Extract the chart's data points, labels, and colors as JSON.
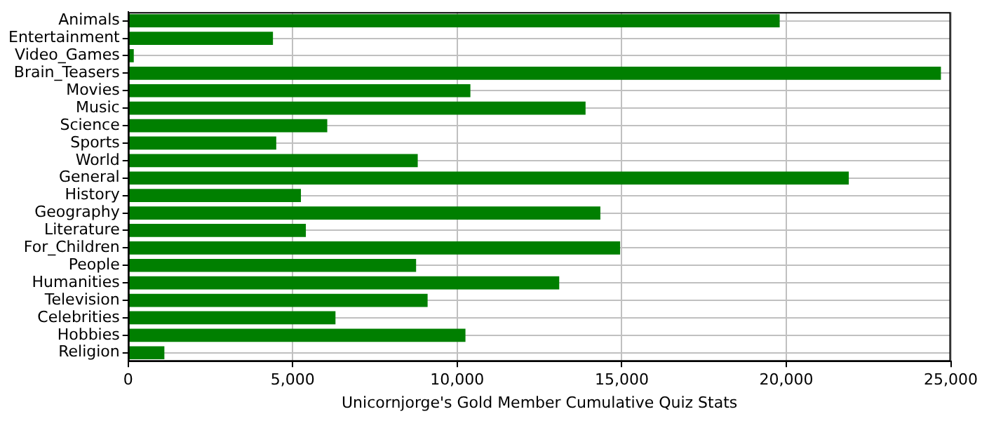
{
  "chart_data": {
    "type": "bar",
    "orientation": "horizontal",
    "xlabel": "Unicornjorge's Gold Member Cumulative Quiz Stats",
    "categories": [
      "Animals",
      "Entertainment",
      "Video_Games",
      "Brain_Teasers",
      "Movies",
      "Music",
      "Science",
      "Sports",
      "World",
      "General",
      "History",
      "Geography",
      "Literature",
      "For_Children",
      "People",
      "Humanities",
      "Television",
      "Celebrities",
      "Hobbies",
      "Religion"
    ],
    "values": [
      19800,
      4400,
      170,
      24700,
      10400,
      13900,
      6050,
      4500,
      8800,
      21900,
      5250,
      14350,
      5400,
      14950,
      8750,
      13100,
      9100,
      6300,
      10250,
      1100
    ],
    "color": "#007f00",
    "xlim": [
      0,
      25000
    ],
    "xticks": [
      {
        "value": 0,
        "label": "0"
      },
      {
        "value": 5000,
        "label": "5,000"
      },
      {
        "value": 10000,
        "label": "10,000"
      },
      {
        "value": 15000,
        "label": "15,000"
      },
      {
        "value": 20000,
        "label": "20,000"
      },
      {
        "value": 25000,
        "label": "25,000"
      }
    ],
    "grid": true,
    "legend": false
  }
}
